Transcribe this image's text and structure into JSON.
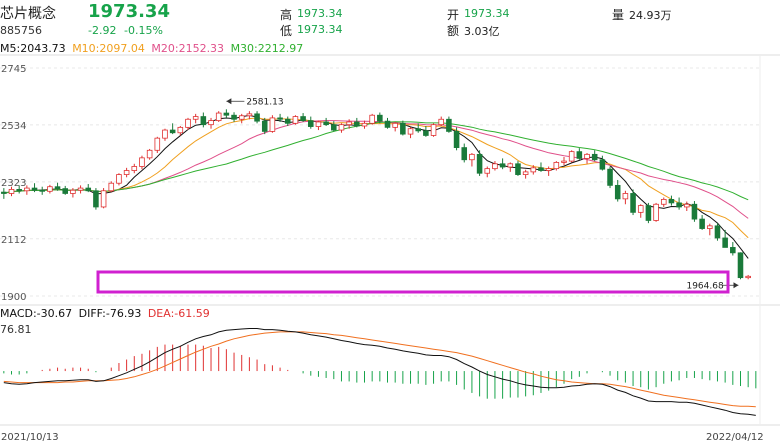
{
  "header": {
    "name": "芯片概念",
    "code": "885756",
    "price": "1973.34",
    "change": "-2.92",
    "change_pct": "-0.15%",
    "high_label": "高",
    "high": "1973.34",
    "low_label": "低",
    "low": "1973.34",
    "open_label": "开",
    "open": "1973.34",
    "amount_label": "额",
    "amount": "3.03亿",
    "volume_label": "量",
    "volume": "24.93万"
  },
  "ma": {
    "ma5": "M5:2043.73",
    "ma10": "M10:2097.04",
    "ma20": "M20:2152.33",
    "ma30": "M30:2212.97"
  },
  "macd": {
    "macd": "MACD:-30.67",
    "diff": "DIFF:-76.93",
    "dea": "DEA:-61.59",
    "axis_top": "76.81"
  },
  "chart_data": {
    "type": "candlestick",
    "price_axis": {
      "ticks": [
        "2745",
        "2534",
        "2323",
        "2112",
        "1900"
      ],
      "ylim": [
        1900,
        2745
      ]
    },
    "annotations": [
      {
        "text": "2581.13",
        "kind": "high"
      },
      {
        "text": "1964.68",
        "kind": "low"
      }
    ],
    "dates": [
      "2021/10/13",
      "2022/04/12"
    ],
    "ohlc": [
      [
        2285,
        2300,
        2260,
        2280
      ],
      [
        2280,
        2305,
        2270,
        2295
      ],
      [
        2295,
        2310,
        2280,
        2290
      ],
      [
        2290,
        2310,
        2275,
        2300
      ],
      [
        2300,
        2318,
        2285,
        2292
      ],
      [
        2292,
        2305,
        2275,
        2288
      ],
      [
        2288,
        2312,
        2280,
        2305
      ],
      [
        2305,
        2320,
        2290,
        2298
      ],
      [
        2298,
        2308,
        2275,
        2280
      ],
      [
        2280,
        2300,
        2265,
        2292
      ],
      [
        2292,
        2310,
        2280,
        2300
      ],
      [
        2300,
        2315,
        2285,
        2290
      ],
      [
        2290,
        2300,
        2220,
        2230
      ],
      [
        2230,
        2300,
        2225,
        2290
      ],
      [
        2290,
        2325,
        2285,
        2318
      ],
      [
        2318,
        2355,
        2310,
        2350
      ],
      [
        2350,
        2375,
        2340,
        2365
      ],
      [
        2365,
        2390,
        2355,
        2380
      ],
      [
        2380,
        2420,
        2370,
        2412
      ],
      [
        2412,
        2445,
        2405,
        2440
      ],
      [
        2440,
        2490,
        2430,
        2485
      ],
      [
        2485,
        2520,
        2475,
        2515
      ],
      [
        2515,
        2540,
        2500,
        2505
      ],
      [
        2505,
        2530,
        2495,
        2525
      ],
      [
        2525,
        2560,
        2515,
        2555
      ],
      [
        2555,
        2575,
        2540,
        2565
      ],
      [
        2565,
        2580,
        2525,
        2535
      ],
      [
        2535,
        2560,
        2520,
        2550
      ],
      [
        2550,
        2585,
        2545,
        2578
      ],
      [
        2578,
        2592,
        2560,
        2570
      ],
      [
        2570,
        2581,
        2545,
        2555
      ],
      [
        2555,
        2575,
        2540,
        2568
      ],
      [
        2568,
        2585,
        2555,
        2575
      ],
      [
        2575,
        2585,
        2540,
        2548
      ],
      [
        2548,
        2560,
        2500,
        2510
      ],
      [
        2510,
        2570,
        2505,
        2560
      ],
      [
        2560,
        2575,
        2545,
        2555
      ],
      [
        2555,
        2565,
        2530,
        2540
      ],
      [
        2540,
        2570,
        2535,
        2565
      ],
      [
        2565,
        2578,
        2545,
        2550
      ],
      [
        2550,
        2565,
        2520,
        2528
      ],
      [
        2528,
        2550,
        2515,
        2545
      ],
      [
        2545,
        2560,
        2530,
        2535
      ],
      [
        2535,
        2548,
        2510,
        2515
      ],
      [
        2515,
        2540,
        2505,
        2535
      ],
      [
        2535,
        2555,
        2520,
        2545
      ],
      [
        2545,
        2560,
        2525,
        2530
      ],
      [
        2530,
        2550,
        2520,
        2540
      ],
      [
        2540,
        2575,
        2535,
        2570
      ],
      [
        2570,
        2580,
        2540,
        2548
      ],
      [
        2548,
        2560,
        2520,
        2525
      ],
      [
        2525,
        2545,
        2510,
        2540
      ],
      [
        2540,
        2550,
        2495,
        2500
      ],
      [
        2500,
        2525,
        2485,
        2520
      ],
      [
        2520,
        2540,
        2505,
        2512
      ],
      [
        2512,
        2530,
        2490,
        2495
      ],
      [
        2495,
        2540,
        2490,
        2535
      ],
      [
        2535,
        2565,
        2530,
        2555
      ],
      [
        2555,
        2565,
        2505,
        2510
      ],
      [
        2510,
        2525,
        2440,
        2450
      ],
      [
        2450,
        2465,
        2395,
        2405
      ],
      [
        2405,
        2430,
        2380,
        2425
      ],
      [
        2425,
        2440,
        2345,
        2355
      ],
      [
        2355,
        2380,
        2340,
        2372
      ],
      [
        2372,
        2400,
        2365,
        2390
      ],
      [
        2390,
        2410,
        2370,
        2378
      ],
      [
        2378,
        2395,
        2360,
        2390
      ],
      [
        2390,
        2400,
        2345,
        2350
      ],
      [
        2350,
        2368,
        2335,
        2360
      ],
      [
        2360,
        2385,
        2350,
        2375
      ],
      [
        2375,
        2395,
        2360,
        2365
      ],
      [
        2365,
        2380,
        2345,
        2372
      ],
      [
        2372,
        2400,
        2365,
        2395
      ],
      [
        2395,
        2415,
        2385,
        2400
      ],
      [
        2400,
        2440,
        2395,
        2435
      ],
      [
        2435,
        2448,
        2405,
        2410
      ],
      [
        2410,
        2430,
        2390,
        2425
      ],
      [
        2425,
        2440,
        2400,
        2405
      ],
      [
        2405,
        2420,
        2365,
        2370
      ],
      [
        2370,
        2380,
        2300,
        2310
      ],
      [
        2310,
        2330,
        2250,
        2260
      ],
      [
        2260,
        2290,
        2240,
        2280
      ],
      [
        2280,
        2295,
        2200,
        2210
      ],
      [
        2210,
        2240,
        2190,
        2235
      ],
      [
        2235,
        2245,
        2170,
        2180
      ],
      [
        2180,
        2245,
        2175,
        2240
      ],
      [
        2240,
        2265,
        2230,
        2258
      ],
      [
        2258,
        2272,
        2235,
        2245
      ],
      [
        2245,
        2265,
        2220,
        2230
      ],
      [
        2230,
        2250,
        2215,
        2240
      ],
      [
        2240,
        2252,
        2175,
        2185
      ],
      [
        2185,
        2200,
        2145,
        2150
      ],
      [
        2150,
        2168,
        2125,
        2160
      ],
      [
        2160,
        2170,
        2105,
        2115
      ],
      [
        2115,
        2145,
        2085,
        2080
      ],
      [
        2080,
        2100,
        2050,
        2060
      ],
      [
        2060,
        2062,
        1962,
        1968
      ],
      [
        1968,
        1978,
        1962,
        1973
      ]
    ],
    "ma_series": [
      {
        "name": "M5",
        "color": "#111111"
      },
      {
        "name": "M10",
        "color": "#f0a020"
      },
      {
        "name": "M20",
        "color": "#e0508a"
      },
      {
        "name": "M30",
        "color": "#30b030"
      }
    ],
    "macd_series": {
      "diff_color": "#111111",
      "dea_color": "#f07020",
      "hist_up_color": "#e03131",
      "hist_down_color": "#17a34a",
      "diff": [
        -20,
        -22,
        -23,
        -22,
        -20,
        -19,
        -18,
        -17,
        -17,
        -16,
        -15,
        -15,
        -18,
        -17,
        -13,
        -8,
        -3,
        3,
        9,
        16,
        24,
        32,
        38,
        43,
        50,
        56,
        60,
        63,
        68,
        71,
        72,
        73,
        74,
        74,
        72,
        72,
        71,
        69,
        68,
        66,
        63,
        61,
        59,
        56,
        53,
        51,
        48,
        46,
        45,
        43,
        40,
        38,
        35,
        33,
        31,
        28,
        27,
        27,
        25,
        20,
        13,
        7,
        0,
        -6,
        -10,
        -14,
        -17,
        -21,
        -24,
        -26,
        -28,
        -29,
        -29,
        -28,
        -26,
        -25,
        -23,
        -22,
        -23,
        -27,
        -33,
        -37,
        -43,
        -47,
        -52,
        -53,
        -53,
        -53,
        -54,
        -54,
        -56,
        -59,
        -62,
        -65,
        -68,
        -72,
        -74,
        -75,
        -77
      ],
      "dea": [
        -18,
        -19,
        -20,
        -20,
        -20,
        -20,
        -20,
        -20,
        -19,
        -19,
        -18,
        -17,
        -17,
        -17,
        -16,
        -15,
        -13,
        -10,
        -6,
        -2,
        3,
        9,
        15,
        21,
        27,
        33,
        38,
        43,
        47,
        52,
        56,
        59,
        62,
        64,
        66,
        67,
        68,
        68,
        68,
        68,
        67,
        66,
        65,
        63,
        62,
        60,
        58,
        56,
        54,
        52,
        50,
        48,
        46,
        44,
        42,
        40,
        38,
        36,
        34,
        32,
        29,
        26,
        22,
        18,
        14,
        10,
        6,
        2,
        -2,
        -5,
        -9,
        -12,
        -15,
        -17,
        -19,
        -20,
        -21,
        -22,
        -22,
        -23,
        -25,
        -27,
        -30,
        -33,
        -36,
        -39,
        -42,
        -44,
        -46,
        -48,
        -50,
        -52,
        -54,
        -56,
        -58,
        -60,
        -61,
        -61,
        -62
      ]
    }
  }
}
